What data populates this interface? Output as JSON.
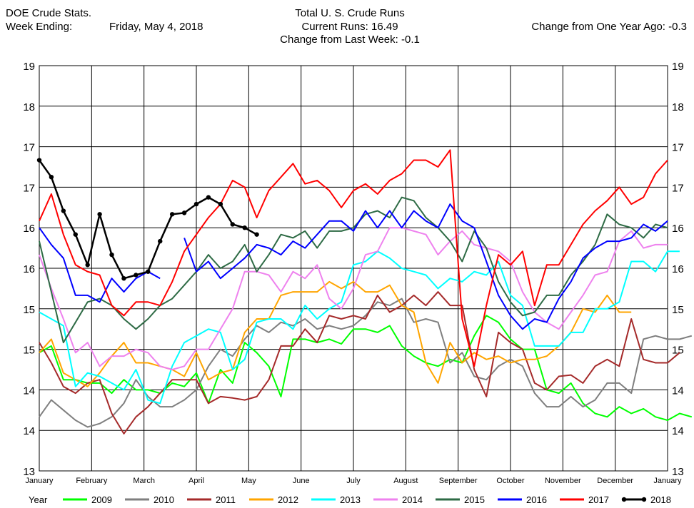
{
  "header": {
    "left_line1": "DOE Crude Stats.",
    "left_line2_label": "Week Ending:",
    "left_line2_value": "Friday, May 4, 2018",
    "center_title": "Total U. S. Crude Runs",
    "center_line2": "Current Runs: 16.49",
    "center_line3": "Change from Last Week:  -0.1",
    "right_line": "Change from One Year Ago:  -0.3"
  },
  "chart_data": {
    "type": "line",
    "ylim": [
      13,
      19
    ],
    "y_tick_labels": [
      "13",
      "14",
      "14",
      "15",
      "15",
      "16",
      "16",
      "17",
      "17",
      "18",
      "19"
    ],
    "month_labels": [
      "January",
      "February",
      "March",
      "April",
      "May",
      "June",
      "July",
      "August",
      "September",
      "October",
      "November",
      "December",
      "January"
    ],
    "legend_title": "Year",
    "grid": true,
    "series": [
      {
        "name": "2009",
        "color": "#00ff00",
        "width": 2,
        "markers": false,
        "values": [
          14.75,
          14.85,
          14.35,
          14.35,
          14.3,
          14.3,
          14.15,
          14.35,
          14.2,
          14.2,
          14.15,
          14.3,
          14.25,
          14.45,
          14.0,
          14.5,
          14.3,
          14.9,
          14.75,
          14.55,
          14.1,
          14.95,
          14.95,
          14.9,
          14.95,
          14.88,
          15.1,
          15.1,
          15.05,
          15.15,
          14.85,
          14.7,
          14.6,
          14.55,
          14.65,
          14.6,
          15.0,
          15.3,
          15.2,
          14.95,
          14.8,
          14.8,
          14.2,
          14.15,
          14.3,
          14.0,
          13.85,
          13.8,
          13.95,
          13.85,
          13.92,
          13.8,
          13.75,
          13.85,
          13.8
        ]
      },
      {
        "name": "2010",
        "color": "#7f7f7f",
        "width": 2,
        "markers": false,
        "values": [
          13.8,
          14.05,
          13.9,
          13.75,
          13.65,
          13.7,
          13.8,
          14.0,
          14.35,
          14.1,
          13.95,
          13.95,
          14.05,
          14.2,
          14.55,
          14.8,
          14.7,
          14.95,
          15.15,
          15.05,
          15.2,
          15.15,
          15.25,
          15.1,
          15.15,
          15.1,
          15.15,
          15.3,
          15.5,
          15.45,
          15.55,
          15.2,
          15.25,
          15.2,
          14.6,
          14.75,
          14.4,
          14.35,
          14.55,
          14.65,
          14.55,
          14.15,
          13.95,
          13.95,
          14.1,
          13.95,
          14.05,
          14.3,
          14.3,
          14.15,
          14.95,
          15.0,
          14.95,
          14.95,
          15.0
        ]
      },
      {
        "name": "2011",
        "color": "#a52a2a",
        "width": 2,
        "markers": false,
        "values": [
          14.9,
          14.6,
          14.25,
          14.15,
          14.3,
          14.35,
          13.85,
          13.55,
          13.8,
          13.95,
          14.15,
          14.35,
          14.35,
          14.35,
          14.0,
          14.1,
          14.08,
          14.05,
          14.1,
          14.35,
          14.85,
          14.85,
          15.1,
          14.9,
          15.3,
          15.25,
          15.3,
          15.25,
          15.6,
          15.35,
          15.45,
          15.6,
          15.45,
          15.65,
          15.45,
          15.45,
          14.5,
          14.1,
          15.05,
          14.9,
          14.8,
          14.3,
          14.2,
          14.4,
          14.42,
          14.3,
          14.55,
          14.65,
          14.55,
          15.25,
          14.65,
          14.6,
          14.6,
          14.75
        ]
      },
      {
        "name": "2012",
        "color": "#ffa500",
        "width": 2,
        "markers": false,
        "values": [
          14.75,
          14.95,
          14.45,
          14.35,
          14.25,
          14.45,
          14.7,
          14.9,
          14.6,
          14.6,
          14.55,
          14.5,
          14.4,
          14.75,
          14.35,
          14.45,
          14.5,
          15.05,
          15.25,
          15.25,
          15.6,
          15.65,
          15.65,
          15.65,
          15.8,
          15.7,
          15.8,
          15.65,
          15.65,
          15.75,
          15.45,
          15.35,
          14.6,
          14.3,
          14.9,
          14.6,
          14.75,
          14.65,
          14.7,
          14.6,
          14.65,
          14.65,
          14.7,
          14.85,
          15.05,
          15.4,
          15.35,
          15.6,
          15.35,
          15.35
        ]
      },
      {
        "name": "2013",
        "color": "#00ffff",
        "width": 2,
        "markers": false,
        "values": [
          15.35,
          15.25,
          15.15,
          14.25,
          14.45,
          14.4,
          14.3,
          14.2,
          14.5,
          14.05,
          14.0,
          14.55,
          14.9,
          15.0,
          15.1,
          15.05,
          14.5,
          14.65,
          15.2,
          15.25,
          15.25,
          15.1,
          15.45,
          15.25,
          15.4,
          15.5,
          16.05,
          16.1,
          16.25,
          16.15,
          16.0,
          15.95,
          15.9,
          15.7,
          15.85,
          15.8,
          15.95,
          15.9,
          16.1,
          15.6,
          15.45,
          14.85,
          14.85,
          14.85,
          15.05,
          15.05,
          15.4,
          15.4,
          15.5,
          16.1,
          16.1,
          15.95,
          16.25,
          16.25
        ]
      },
      {
        "name": "2014",
        "color": "#ee82ee",
        "width": 2,
        "markers": false,
        "values": [
          16.2,
          15.7,
          15.25,
          14.75,
          14.9,
          14.55,
          14.7,
          14.7,
          14.8,
          14.75,
          14.55,
          14.5,
          14.55,
          14.8,
          14.8,
          15.1,
          15.4,
          15.95,
          15.95,
          15.9,
          15.65,
          15.95,
          15.85,
          16.05,
          15.55,
          15.4,
          15.7,
          16.2,
          16.25,
          16.6,
          16.6,
          16.55,
          16.5,
          16.2,
          16.4,
          16.55,
          16.35,
          16.3,
          16.25,
          16.1,
          15.65,
          15.35,
          15.2,
          15.1,
          15.35,
          15.6,
          15.9,
          15.95,
          16.4,
          16.55,
          16.3,
          16.35,
          16.35
        ]
      },
      {
        "name": "2015",
        "color": "#2e6b45",
        "width": 2,
        "markers": false,
        "values": [
          16.4,
          15.65,
          14.9,
          15.2,
          15.5,
          15.55,
          15.45,
          15.25,
          15.1,
          15.25,
          15.45,
          15.55,
          15.75,
          15.95,
          16.2,
          16.0,
          16.1,
          16.35,
          15.95,
          16.2,
          16.5,
          16.45,
          16.55,
          16.3,
          16.55,
          16.55,
          16.6,
          16.8,
          16.85,
          16.75,
          17.05,
          17.0,
          16.75,
          16.6,
          16.4,
          16.1,
          16.55,
          16.3,
          15.8,
          15.5,
          15.3,
          15.35,
          15.6,
          15.6,
          15.9,
          16.1,
          16.35,
          16.8,
          16.65,
          16.6,
          16.45,
          16.65,
          16.6
        ]
      },
      {
        "name": "2016",
        "color": "#0000ff",
        "width": 2,
        "markers": false,
        "values": [
          16.6,
          16.35,
          16.15,
          15.6,
          15.6,
          15.5,
          15.85,
          15.65,
          15.85,
          15.95,
          15.85,
          null,
          16.45,
          15.95,
          16.1,
          15.85,
          16.0,
          16.15,
          16.35,
          16.3,
          16.2,
          16.4,
          16.3,
          16.5,
          16.7,
          16.7,
          16.55,
          16.85,
          16.6,
          16.85,
          16.6,
          16.85,
          16.7,
          16.6,
          16.95,
          16.7,
          16.6,
          16.1,
          15.6,
          15.3,
          15.1,
          15.25,
          15.2,
          15.55,
          15.8,
          16.15,
          16.3,
          16.4,
          16.4,
          16.45,
          16.65,
          16.55,
          16.7
        ]
      },
      {
        "name": "2017",
        "color": "#ff0000",
        "width": 2,
        "markers": false,
        "values": [
          16.7,
          17.1,
          16.5,
          16.05,
          15.95,
          15.9,
          15.45,
          15.3,
          15.5,
          15.5,
          15.45,
          15.8,
          16.25,
          16.5,
          16.75,
          16.95,
          17.3,
          17.2,
          16.75,
          17.15,
          17.35,
          17.55,
          17.25,
          17.3,
          17.15,
          16.9,
          17.15,
          17.25,
          17.1,
          17.3,
          17.4,
          17.6,
          17.6,
          17.5,
          17.75,
          15.25,
          14.55,
          15.45,
          16.2,
          16.05,
          16.25,
          15.45,
          16.05,
          16.05,
          16.35,
          16.65,
          16.85,
          17.0,
          17.2,
          16.95,
          17.05,
          17.4,
          17.6
        ]
      },
      {
        "name": "2018",
        "color": "#000000",
        "width": 2.5,
        "markers": true,
        "values": [
          17.6,
          17.35,
          16.85,
          16.5,
          16.05,
          16.8,
          16.2,
          15.85,
          15.9,
          15.95,
          16.4,
          16.8,
          16.82,
          16.95,
          17.05,
          16.95,
          16.65,
          16.6,
          16.5
        ]
      }
    ]
  }
}
